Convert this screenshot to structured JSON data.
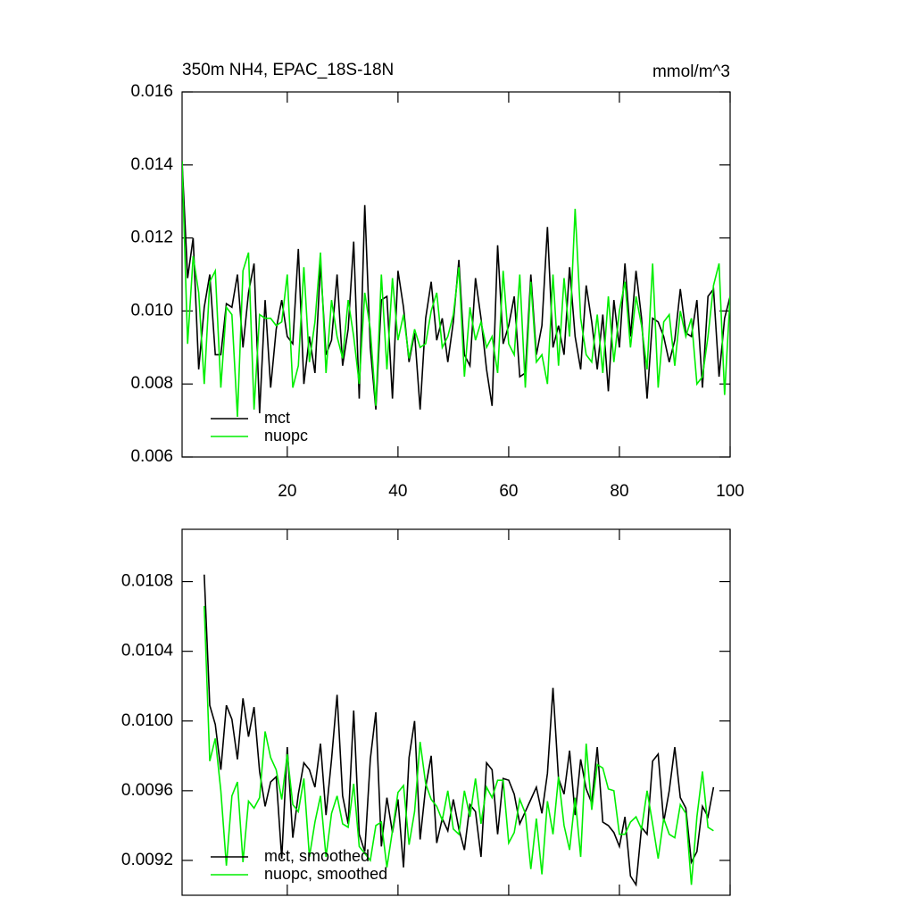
{
  "chart_data": [
    {
      "type": "line",
      "title": "350m NH4, EPAC_18S-18N",
      "units": "mmol/m^3",
      "x": [
        1,
        2,
        3,
        4,
        5,
        6,
        7,
        8,
        9,
        10,
        11,
        12,
        13,
        14,
        15,
        16,
        17,
        18,
        19,
        20,
        21,
        22,
        23,
        24,
        25,
        26,
        27,
        28,
        29,
        30,
        31,
        32,
        33,
        34,
        35,
        36,
        37,
        38,
        39,
        40,
        41,
        42,
        43,
        44,
        45,
        46,
        47,
        48,
        49,
        50,
        51,
        52,
        53,
        54,
        55,
        56,
        57,
        58,
        59,
        60,
        61,
        62,
        63,
        64,
        65,
        66,
        67,
        68,
        69,
        70,
        71,
        72,
        73,
        74,
        75,
        76,
        77,
        78,
        79,
        80,
        81,
        82,
        83,
        84,
        85,
        86,
        87,
        88,
        89,
        90,
        91,
        92,
        93,
        94,
        95,
        96,
        97,
        98,
        99,
        100
      ],
      "xlim": [
        1,
        100
      ],
      "xticks": [
        20,
        40,
        60,
        80,
        100
      ],
      "show_xtick_labels": true,
      "ylim": [
        0.006,
        0.016
      ],
      "yticks": [
        0.016,
        0.014,
        0.012,
        {
          "value": 0.01,
          "label": "0.010"
        },
        0.008,
        0.006
      ],
      "series": [
        {
          "name": "mct",
          "color": "#000000",
          "values": [
            0.0141,
            0.0109,
            0.012,
            0.0084,
            0.0101,
            0.011,
            0.0088,
            0.0088,
            0.0102,
            0.0101,
            0.011,
            0.009,
            0.0105,
            0.0113,
            0.0072,
            0.0103,
            0.0079,
            0.0095,
            0.0103,
            0.0093,
            0.0091,
            0.0117,
            0.008,
            0.0093,
            0.0083,
            0.0113,
            0.0088,
            0.0092,
            0.011,
            0.0085,
            0.0095,
            0.0119,
            0.0076,
            0.0129,
            0.009,
            0.0073,
            0.0103,
            0.0104,
            0.0076,
            0.0111,
            0.0101,
            0.0086,
            0.0094,
            0.0073,
            0.0098,
            0.0108,
            0.0092,
            0.0098,
            0.0086,
            0.0097,
            0.0114,
            0.0088,
            0.0085,
            0.0109,
            0.0098,
            0.0084,
            0.0074,
            0.0118,
            0.0091,
            0.0096,
            0.0104,
            0.0082,
            0.0083,
            0.011,
            0.0088,
            0.0096,
            0.0123,
            0.009,
            0.0096,
            0.0088,
            0.0112,
            0.0093,
            0.0084,
            0.0107,
            0.0097,
            0.0084,
            0.0099,
            0.0078,
            0.0103,
            0.009,
            0.0113,
            0.0093,
            0.0111,
            0.0098,
            0.0076,
            0.0098,
            0.0097,
            0.0093,
            0.0086,
            0.0092,
            0.0106,
            0.0094,
            0.0093,
            0.0103,
            0.0079,
            0.0104,
            0.0106,
            0.0082,
            0.0098,
            0.0104
          ]
        },
        {
          "name": "nuopc",
          "color": "#00ee00",
          "values": [
            0.0141,
            0.0091,
            0.0115,
            0.0105,
            0.008,
            0.0108,
            0.0111,
            0.0079,
            0.0101,
            0.0099,
            0.0071,
            0.0111,
            0.0116,
            0.0073,
            0.0099,
            0.0098,
            0.0098,
            0.0096,
            0.0097,
            0.011,
            0.0079,
            0.0085,
            0.0112,
            0.0086,
            0.0097,
            0.0116,
            0.0083,
            0.0103,
            0.0093,
            0.0087,
            0.0103,
            0.0093,
            0.008,
            0.0105,
            0.0095,
            0.0074,
            0.011,
            0.0084,
            0.0109,
            0.0092,
            0.0099,
            0.0087,
            0.0095,
            0.009,
            0.0091,
            0.01,
            0.0105,
            0.009,
            0.0093,
            0.0099,
            0.0112,
            0.0082,
            0.0101,
            0.0092,
            0.0097,
            0.009,
            0.0093,
            0.0083,
            0.0111,
            0.0091,
            0.0088,
            0.011,
            0.0079,
            0.0108,
            0.0086,
            0.0088,
            0.008,
            0.011,
            0.0085,
            0.0109,
            0.0093,
            0.0128,
            0.0098,
            0.0088,
            0.0086,
            0.0099,
            0.0083,
            0.0104,
            0.0086,
            0.01,
            0.0108,
            0.009,
            0.0104,
            0.0096,
            0.0084,
            0.0113,
            0.0079,
            0.0097,
            0.0099,
            0.0085,
            0.01,
            0.0093,
            0.0098,
            0.008,
            0.0082,
            0.0093,
            0.0107,
            0.0113,
            0.0077,
            0.0104
          ]
        }
      ]
    },
    {
      "type": "line",
      "x": [
        5,
        6,
        7,
        8,
        9,
        10,
        11,
        12,
        13,
        14,
        15,
        16,
        17,
        18,
        19,
        20,
        21,
        22,
        23,
        24,
        25,
        26,
        27,
        28,
        29,
        30,
        31,
        32,
        33,
        34,
        35,
        36,
        37,
        38,
        39,
        40,
        41,
        42,
        43,
        44,
        45,
        46,
        47,
        48,
        49,
        50,
        51,
        52,
        53,
        54,
        55,
        56,
        57,
        58,
        59,
        60,
        61,
        62,
        63,
        64,
        65,
        66,
        67,
        68,
        69,
        70,
        71,
        72,
        73,
        74,
        75,
        76,
        77,
        78,
        79,
        80,
        81,
        82,
        83,
        84,
        85,
        86,
        87,
        88,
        89,
        90,
        91,
        92,
        93,
        94,
        95,
        96,
        97
      ],
      "xlim": [
        1,
        100
      ],
      "xticks": [
        20,
        40,
        60,
        80,
        100
      ],
      "show_xtick_labels": false,
      "ylim": [
        0.009,
        0.0111
      ],
      "yticks": [
        0.0108,
        0.0104,
        {
          "value": 0.01,
          "label": "0.0100"
        },
        0.0096,
        0.0092
      ],
      "series": [
        {
          "name": "mct, smoothed",
          "color": "#000000",
          "values": [
            0.01084,
            0.01009,
            0.00998,
            0.00972,
            0.01009,
            0.01001,
            0.00978,
            0.01013,
            0.00991,
            0.01008,
            0.00971,
            0.00951,
            0.00965,
            0.00968,
            0.00921,
            0.00985,
            0.00933,
            0.00958,
            0.00976,
            0.00972,
            0.00962,
            0.00987,
            0.00946,
            0.00978,
            0.01015,
            0.00957,
            0.00941,
            0.01006,
            0.00935,
            0.00925,
            0.00978,
            0.01005,
            0.00928,
            0.00956,
            0.00936,
            0.00955,
            0.00916,
            0.00979,
            0.01,
            0.00932,
            0.00962,
            0.0098,
            0.0093,
            0.00944,
            0.00937,
            0.00955,
            0.00938,
            0.00926,
            0.00952,
            0.00948,
            0.00922,
            0.00976,
            0.00972,
            0.00935,
            0.00967,
            0.00966,
            0.00958,
            0.00941,
            0.00948,
            0.00955,
            0.00962,
            0.00947,
            0.0097,
            0.01019,
            0.00967,
            0.00958,
            0.00983,
            0.00946,
            0.00978,
            0.00961,
            0.00953,
            0.00985,
            0.00942,
            0.0094,
            0.00936,
            0.00928,
            0.00945,
            0.00911,
            0.00906,
            0.00939,
            0.00935,
            0.00977,
            0.00981,
            0.00942,
            0.0096,
            0.00985,
            0.00956,
            0.0095,
            0.00919,
            0.00925,
            0.00951,
            0.00945,
            0.00962
          ]
        },
        {
          "name": "nuopc, smoothed",
          "color": "#00ee00",
          "values": [
            0.01066,
            0.00977,
            0.0099,
            0.0096,
            0.00917,
            0.00957,
            0.00965,
            0.00919,
            0.00954,
            0.0095,
            0.00956,
            0.00994,
            0.00979,
            0.00972,
            0.00955,
            0.00981,
            0.00952,
            0.00948,
            0.00967,
            0.00922,
            0.00942,
            0.00957,
            0.00922,
            0.00947,
            0.00957,
            0.00941,
            0.00939,
            0.00964,
            0.00928,
            0.00924,
            0.0092,
            0.0094,
            0.00942,
            0.00916,
            0.00937,
            0.00959,
            0.00963,
            0.00929,
            0.00948,
            0.00988,
            0.00964,
            0.00955,
            0.00951,
            0.00943,
            0.0096,
            0.00938,
            0.00935,
            0.0096,
            0.00945,
            0.00967,
            0.00941,
            0.00962,
            0.00956,
            0.00966,
            0.00966,
            0.0093,
            0.00936,
            0.00955,
            0.00947,
            0.00915,
            0.00944,
            0.00912,
            0.00954,
            0.00935,
            0.00968,
            0.0094,
            0.00926,
            0.00956,
            0.00922,
            0.00987,
            0.00949,
            0.00975,
            0.00973,
            0.00961,
            0.0096,
            0.00935,
            0.00935,
            0.00942,
            0.00945,
            0.00938,
            0.0096,
            0.00941,
            0.00921,
            0.00944,
            0.00935,
            0.00933,
            0.00952,
            0.00947,
            0.00906,
            0.00945,
            0.00971,
            0.00939,
            0.00937
          ]
        }
      ]
    }
  ]
}
